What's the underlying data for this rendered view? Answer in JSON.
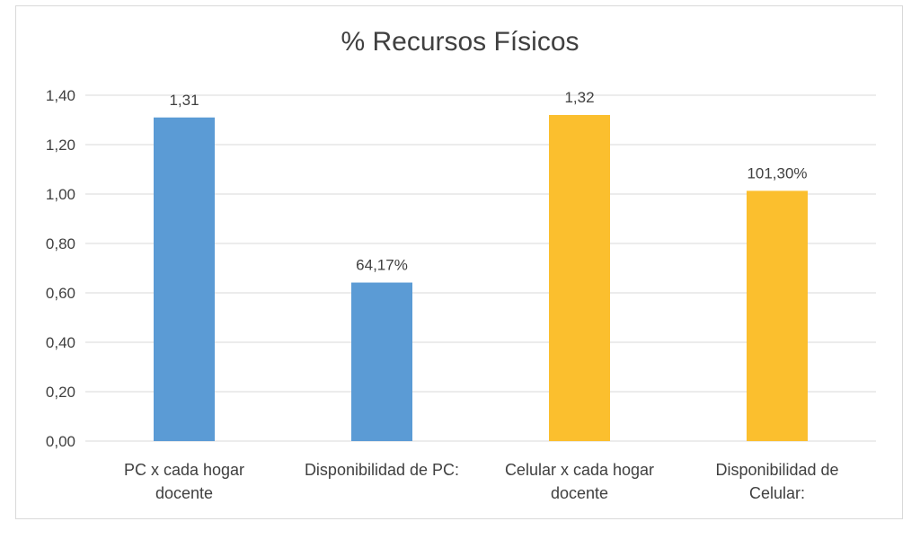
{
  "chart_data": {
    "type": "bar",
    "title": "% Recursos Físicos",
    "categories": [
      [
        "PC x cada hogar",
        "docente"
      ],
      [
        "Disponibilidad de PC:"
      ],
      [
        "Celular x cada hogar",
        "docente"
      ],
      [
        "Disponibilidad de",
        "Celular:"
      ]
    ],
    "values": [
      1.31,
      0.6417,
      1.32,
      1.013
    ],
    "data_labels": [
      "1,31",
      "64,17%",
      "1,32",
      "101,30%"
    ],
    "bar_colors": [
      "#5b9bd5",
      "#5b9bd5",
      "#fbbf2e",
      "#fbbf2e"
    ],
    "ylim": [
      0,
      1.4
    ],
    "yticks": [
      {
        "value": 0,
        "label": "0,00"
      },
      {
        "value": 0.2,
        "label": "0,20"
      },
      {
        "value": 0.4,
        "label": "0,40"
      },
      {
        "value": 0.6,
        "label": "0,60"
      },
      {
        "value": 0.8,
        "label": "0,80"
      },
      {
        "value": 1.0,
        "label": "1,00"
      },
      {
        "value": 1.2,
        "label": "1,20"
      },
      {
        "value": 1.4,
        "label": "1,40"
      }
    ],
    "grid": true,
    "gridline_color": "#d9d9d9",
    "legend": "none"
  }
}
